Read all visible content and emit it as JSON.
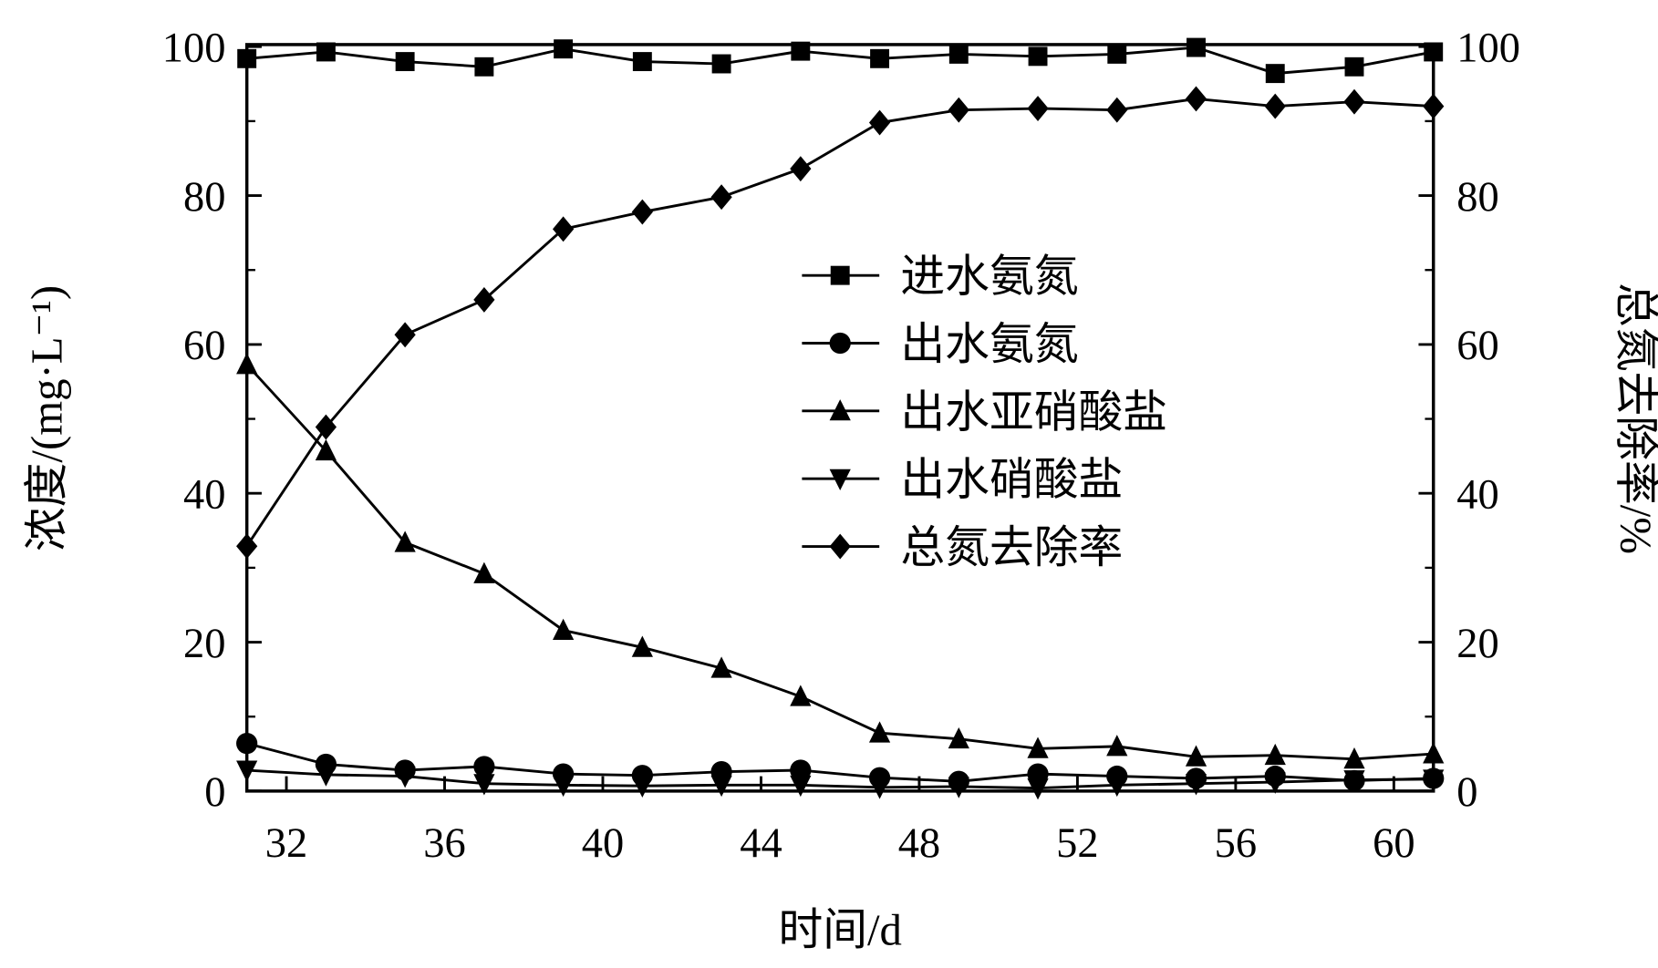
{
  "chart_data": {
    "type": "line",
    "xlabel": "时间/d",
    "ylabel": "浓度/(mg·L⁻¹)",
    "y2label": "总氮去除率/%",
    "xlim": [
      31,
      61
    ],
    "ylim": [
      0,
      100
    ],
    "y2lim": [
      0,
      100
    ],
    "xticks": [
      "32",
      "36",
      "40",
      "44",
      "48",
      "52",
      "56",
      "60"
    ],
    "yticks": [
      "0",
      "20",
      "40",
      "60",
      "80",
      "100"
    ],
    "y2ticks": [
      "0",
      "20",
      "40",
      "60",
      "80",
      "100"
    ],
    "legend_position": "center-right",
    "grid": false,
    "x": [
      31,
      33,
      35,
      37,
      39,
      41,
      43,
      45,
      47,
      49,
      51,
      53,
      55,
      57,
      59,
      61
    ],
    "series": [
      {
        "name": "进水氨氮",
        "marker": "square",
        "axis": "left",
        "values": [
          98.4,
          99.3,
          98.0,
          97.3,
          99.7,
          98.0,
          97.7,
          99.4,
          98.4,
          99.0,
          98.7,
          99.0,
          99.9,
          96.4,
          97.3,
          99.3
        ]
      },
      {
        "name": "出水氨氮",
        "marker": "circle",
        "axis": "left",
        "values": [
          6.4,
          3.6,
          2.8,
          3.3,
          2.3,
          2.1,
          2.6,
          2.8,
          1.8,
          1.3,
          2.3,
          2.0,
          1.7,
          2.0,
          1.4,
          1.7
        ]
      },
      {
        "name": "出水亚硝酸盐",
        "marker": "triangle-up",
        "axis": "left",
        "values": [
          57.3,
          45.7,
          33.4,
          29.2,
          21.6,
          19.3,
          16.5,
          12.7,
          7.8,
          7.0,
          5.7,
          6.0,
          4.6,
          4.8,
          4.3,
          5.0
        ]
      },
      {
        "name": "出水硝酸盐",
        "marker": "triangle-down",
        "axis": "left",
        "values": [
          2.8,
          2.2,
          2.0,
          1.0,
          0.8,
          0.7,
          0.8,
          0.8,
          0.5,
          0.6,
          0.4,
          0.8,
          1.0,
          1.2,
          1.5,
          1.6
        ]
      },
      {
        "name": "总氮去除率",
        "marker": "diamond",
        "axis": "right",
        "values": [
          32.9,
          48.9,
          61.3,
          66.0,
          75.5,
          77.8,
          79.8,
          83.6,
          89.8,
          91.5,
          91.7,
          91.5,
          93.0,
          92.0,
          92.6,
          92.0
        ]
      }
    ]
  }
}
